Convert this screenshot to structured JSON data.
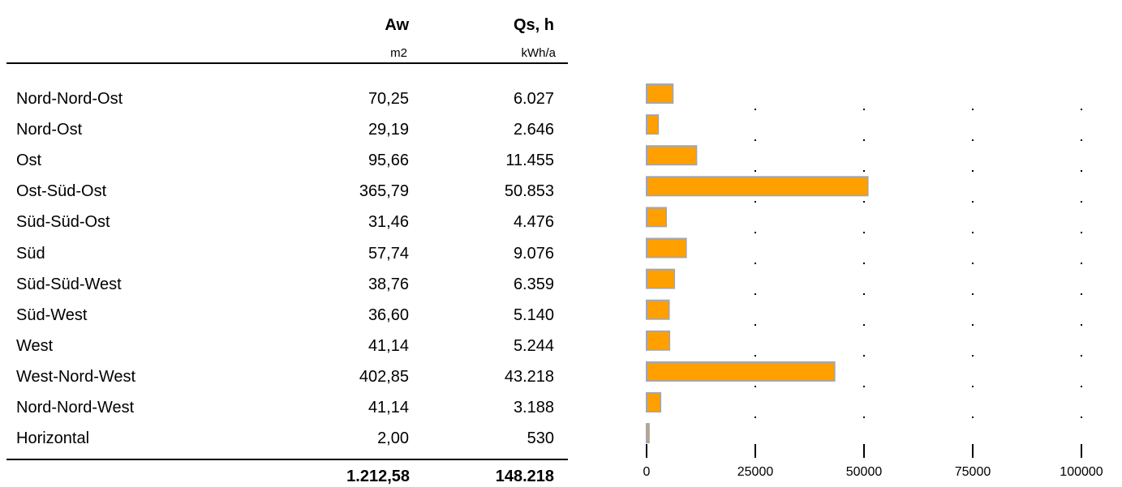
{
  "table": {
    "col_aw": {
      "title": "Aw",
      "unit": "m2"
    },
    "col_qs": {
      "title": "Qs, h",
      "unit": "kWh/a"
    },
    "rows": [
      {
        "label": "Nord-Nord-Ost",
        "aw": "70,25",
        "qs": "6.027"
      },
      {
        "label": "Nord-Ost",
        "aw": "29,19",
        "qs": "2.646"
      },
      {
        "label": "Ost",
        "aw": "95,66",
        "qs": "11.455"
      },
      {
        "label": "Ost-Süd-Ost",
        "aw": "365,79",
        "qs": "50.853"
      },
      {
        "label": "Süd-Süd-Ost",
        "aw": "31,46",
        "qs": "4.476"
      },
      {
        "label": "Süd",
        "aw": "57,74",
        "qs": "9.076"
      },
      {
        "label": "Süd-Süd-West",
        "aw": "38,76",
        "qs": "6.359"
      },
      {
        "label": "Süd-West",
        "aw": "36,60",
        "qs": "5.140"
      },
      {
        "label": "West",
        "aw": "41,14",
        "qs": "5.244"
      },
      {
        "label": "West-Nord-West",
        "aw": "402,85",
        "qs": "43.218"
      },
      {
        "label": "Nord-Nord-West",
        "aw": "41,14",
        "qs": "3.188"
      },
      {
        "label": "Horizontal",
        "aw": "2,00",
        "qs": "530"
      }
    ],
    "total_aw": "1.212,58",
    "total_qs": "148.218"
  },
  "chart_data": {
    "type": "bar",
    "orientation": "horizontal",
    "categories": [
      "Nord-Nord-Ost",
      "Nord-Ost",
      "Ost",
      "Ost-Süd-Ost",
      "Süd-Süd-Ost",
      "Süd",
      "Süd-Süd-West",
      "Süd-West",
      "West",
      "West-Nord-West",
      "Nord-Nord-West",
      "Horizontal"
    ],
    "values": [
      6027,
      2646,
      11455,
      50853,
      4476,
      9076,
      6359,
      5140,
      5244,
      43218,
      3188,
      530
    ],
    "xlim": [
      0,
      100000
    ],
    "ticks": [
      "0",
      "25000",
      "50000",
      "75000",
      "100000"
    ],
    "grid": "dotted vertical",
    "colors": {
      "bar_fill": "#FFA000",
      "bar_stroke": "#A6A6A6"
    }
  }
}
